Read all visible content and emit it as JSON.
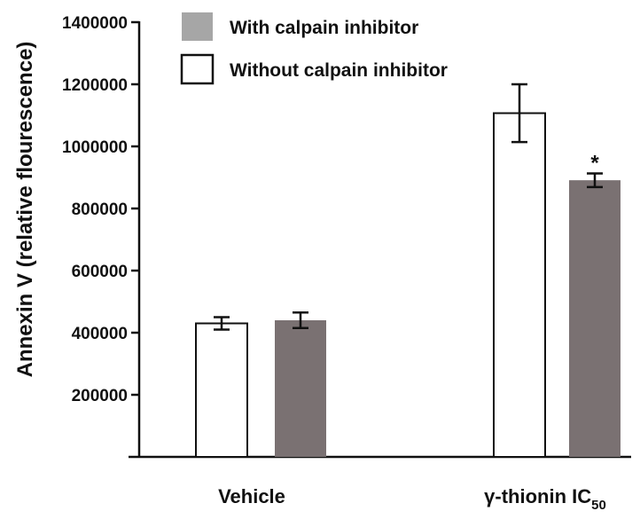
{
  "chart_data": {
    "type": "bar",
    "ylabel": "Annexin V (relative flourescence)",
    "ylim": [
      0,
      1400000
    ],
    "yticks": [
      200000,
      400000,
      600000,
      800000,
      1000000,
      1200000,
      1400000
    ],
    "grid": false,
    "legend_position": "top-left",
    "categories": [
      {
        "main": "Vehicle",
        "sub": ""
      },
      {
        "main": "γ-thionin IC",
        "sub": "50"
      }
    ],
    "series": [
      {
        "name": "Without calpain inhibitor",
        "color": "#ffffff",
        "values": [
          430000,
          1107000
        ],
        "errors": [
          20000,
          93000
        ]
      },
      {
        "name": "With calpain inhibitor",
        "color": "#7a7172",
        "values": [
          440000,
          891000
        ],
        "errors": [
          25000,
          22000
        ]
      }
    ],
    "legend": [
      {
        "label": "With calpain inhibitor",
        "color": "#a6a6a6"
      },
      {
        "label": "Without calpain inhibitor",
        "color": "#ffffff"
      }
    ],
    "annotations": [
      {
        "text": "*",
        "category": 1,
        "series": 1
      }
    ]
  }
}
